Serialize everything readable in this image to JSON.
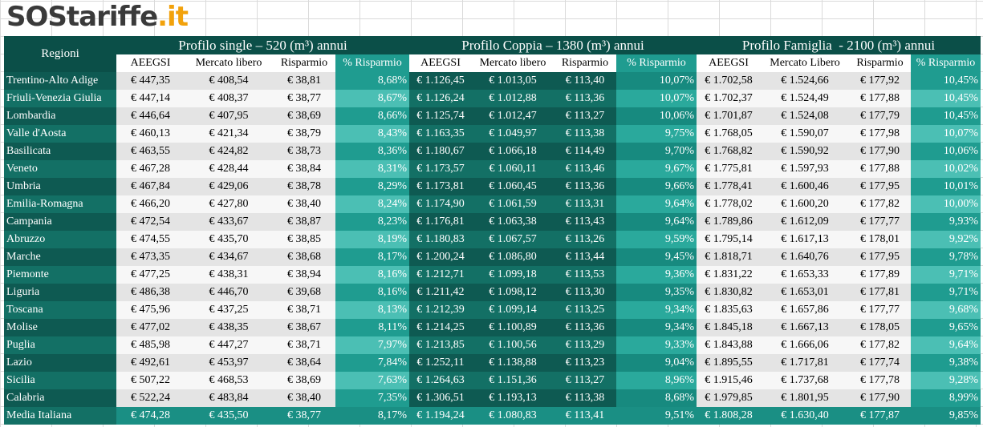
{
  "logo": {
    "brand": "SOStariffe",
    "suffix": ".it"
  },
  "table": {
    "corner": "Regioni",
    "groups": [
      "Profilo single – 520 (m³) annui",
      "Profilo Coppia – 1380 (m³) annui",
      "Profilo Famiglia  - 2100 (m³) annui"
    ],
    "subheaders": [
      "AEEGSI",
      "Mercato libero",
      "Risparmio",
      "% Risparmio",
      "AEEGSI",
      "Mercato libero",
      "Risparmio",
      "% Risparmio",
      "AEEGSI",
      "Mercato Libero",
      "Risparmio",
      "% Risparmio"
    ],
    "rows": [
      [
        "Trentino-Alto Adige",
        "€ 447,35",
        "€ 408,54",
        "€ 38,81",
        "8,68%",
        "€ 1.126,45",
        "€ 1.013,05",
        "€ 113,40",
        "10,07%",
        "€ 1.702,58",
        "€ 1.524,66",
        "€ 177,92",
        "10,45%"
      ],
      [
        "Friuli-Venezia Giulia",
        "€ 447,14",
        "€ 408,37",
        "€ 38,77",
        "8,67%",
        "€ 1.126,24",
        "€ 1.012,88",
        "€ 113,36",
        "10,07%",
        "€ 1.702,37",
        "€ 1.524,49",
        "€ 177,88",
        "10,45%"
      ],
      [
        "Lombardia",
        "€ 446,64",
        "€ 407,95",
        "€ 38,69",
        "8,66%",
        "€ 1.125,74",
        "€ 1.012,47",
        "€ 113,27",
        "10,06%",
        "€ 1.701,87",
        "€ 1.524,08",
        "€ 177,79",
        "10,45%"
      ],
      [
        "Valle d'Aosta",
        "€ 460,13",
        "€ 421,34",
        "€ 38,79",
        "8,43%",
        "€ 1.163,35",
        "€ 1.049,97",
        "€ 113,38",
        "9,75%",
        "€ 1.768,05",
        "€ 1.590,07",
        "€ 177,98",
        "10,07%"
      ],
      [
        "Basilicata",
        "€ 463,55",
        "€ 424,82",
        "€ 38,73",
        "8,36%",
        "€ 1.180,67",
        "€ 1.066,18",
        "€ 114,49",
        "9,70%",
        "€ 1.768,82",
        "€ 1.590,92",
        "€ 177,90",
        "10,06%"
      ],
      [
        "Veneto",
        "€ 467,28",
        "€ 428,44",
        "€ 38,84",
        "8,31%",
        "€ 1.173,57",
        "€ 1.060,11",
        "€ 113,46",
        "9,67%",
        "€ 1.775,81",
        "€ 1.597,93",
        "€ 177,88",
        "10,02%"
      ],
      [
        "Umbria",
        "€ 467,84",
        "€ 429,06",
        "€ 38,78",
        "8,29%",
        "€ 1.173,81",
        "€ 1.060,45",
        "€ 113,36",
        "9,66%",
        "€ 1.778,41",
        "€ 1.600,46",
        "€ 177,95",
        "10,01%"
      ],
      [
        "Emilia-Romagna",
        "€ 466,20",
        "€ 427,80",
        "€ 38,40",
        "8,24%",
        "€ 1.174,90",
        "€ 1.061,59",
        "€ 113,31",
        "9,64%",
        "€ 1.778,02",
        "€ 1.600,20",
        "€ 177,82",
        "10,00%"
      ],
      [
        "Campania",
        "€ 472,54",
        "€ 433,67",
        "€ 38,87",
        "8,23%",
        "€ 1.176,81",
        "€ 1.063,38",
        "€ 113,43",
        "9,64%",
        "€ 1.789,86",
        "€ 1.612,09",
        "€ 177,77",
        "9,93%"
      ],
      [
        "Abruzzo",
        "€ 474,55",
        "€ 435,70",
        "€ 38,85",
        "8,19%",
        "€ 1.180,83",
        "€ 1.067,57",
        "€ 113,26",
        "9,59%",
        "€ 1.795,14",
        "€ 1.617,13",
        "€ 178,01",
        "9,92%"
      ],
      [
        "Marche",
        "€ 473,35",
        "€ 434,67",
        "€ 38,68",
        "8,17%",
        "€ 1.200,24",
        "€ 1.086,80",
        "€ 113,44",
        "9,45%",
        "€ 1.818,71",
        "€ 1.640,76",
        "€ 177,95",
        "9,78%"
      ],
      [
        "Piemonte",
        "€ 477,25",
        "€ 438,31",
        "€ 38,94",
        "8,16%",
        "€ 1.212,71",
        "€ 1.099,18",
        "€ 113,53",
        "9,36%",
        "€ 1.831,22",
        "€ 1.653,33",
        "€ 177,89",
        "9,71%"
      ],
      [
        "Liguria",
        "€ 486,38",
        "€ 446,70",
        "€ 39,68",
        "8,16%",
        "€ 1.211,42",
        "€ 1.098,12",
        "€ 113,30",
        "9,35%",
        "€ 1.830,82",
        "€ 1.653,01",
        "€ 177,81",
        "9,71%"
      ],
      [
        "Toscana",
        "€ 475,96",
        "€ 437,25",
        "€ 38,71",
        "8,13%",
        "€ 1.212,39",
        "€ 1.099,14",
        "€ 113,25",
        "9,34%",
        "€ 1.835,63",
        "€ 1.657,86",
        "€ 177,77",
        "9,68%"
      ],
      [
        "Molise",
        "€ 477,02",
        "€ 438,35",
        "€ 38,67",
        "8,11%",
        "€ 1.214,25",
        "€ 1.100,89",
        "€ 113,36",
        "9,34%",
        "€ 1.845,18",
        "€ 1.667,13",
        "€ 178,05",
        "9,65%"
      ],
      [
        "Puglia",
        "€ 485,98",
        "€ 447,27",
        "€ 38,71",
        "7,97%",
        "€ 1.213,85",
        "€ 1.100,56",
        "€ 113,29",
        "9,33%",
        "€ 1.843,88",
        "€ 1.666,06",
        "€ 177,82",
        "9,64%"
      ],
      [
        "Lazio",
        "€ 492,61",
        "€ 453,97",
        "€ 38,64",
        "7,84%",
        "€ 1.252,11",
        "€ 1.138,88",
        "€ 113,23",
        "9,04%",
        "€ 1.895,55",
        "€ 1.717,81",
        "€ 177,74",
        "9,38%"
      ],
      [
        "Sicilia",
        "€ 507,22",
        "€ 468,53",
        "€ 38,69",
        "7,63%",
        "€ 1.264,63",
        "€ 1.151,36",
        "€ 113,27",
        "8,96%",
        "€ 1.915,46",
        "€ 1.737,68",
        "€ 177,78",
        "9,28%"
      ],
      [
        "Calabria",
        "€ 522,24",
        "€ 483,84",
        "€ 38,40",
        "7,35%",
        "€ 1.306,51",
        "€ 1.193,13",
        "€ 113,38",
        "8,68%",
        "€ 1.979,85",
        "€ 1.801,95",
        "€ 177,90",
        "8,99%"
      ],
      [
        "Media Italiana",
        "€ 474,28",
        "€ 435,50",
        "€ 38,77",
        "8,17%",
        "€ 1.194,24",
        "€ 1.080,83",
        "€ 113,41",
        "9,51%",
        "€ 1.808,28",
        "€ 1.630,40",
        "€ 177,87",
        "9,85%"
      ]
    ]
  }
}
